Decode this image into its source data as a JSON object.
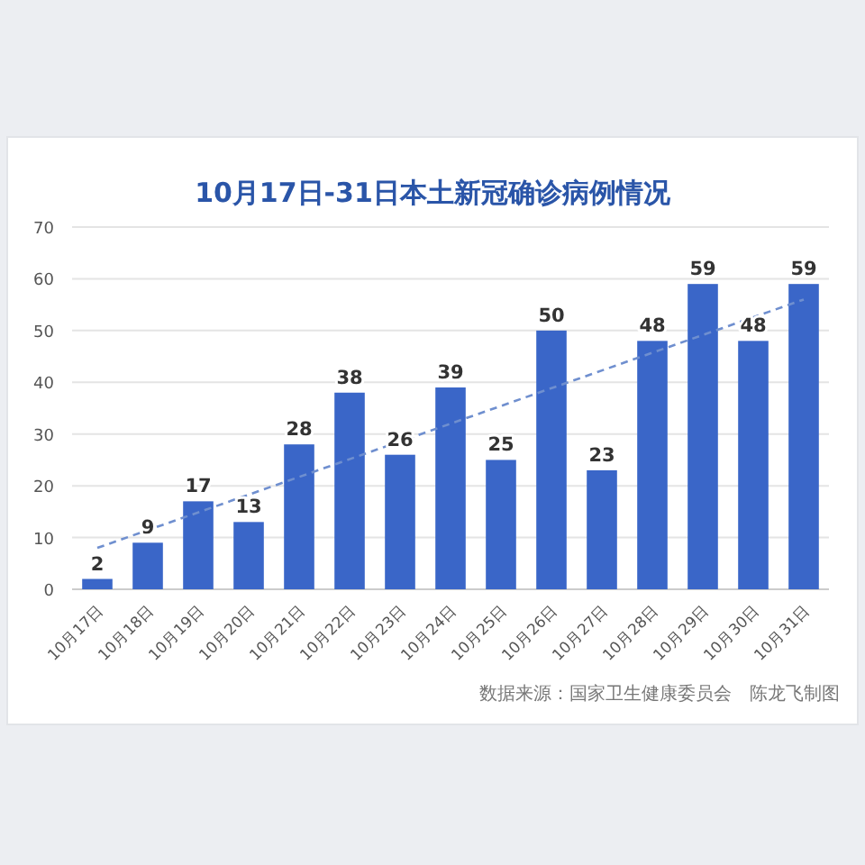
{
  "chart_data": {
    "type": "bar",
    "title": "10月17日-31日本土新冠确诊病例情况",
    "categories": [
      "10月17日",
      "10月18日",
      "10月19日",
      "10月20日",
      "10月21日",
      "10月22日",
      "10月23日",
      "10月24日",
      "10月25日",
      "10月26日",
      "10月27日",
      "10月28日",
      "10月29日",
      "10月30日",
      "10月31日"
    ],
    "series": [
      {
        "color": "#3a66c8",
        "data_labels": true,
        "values": [
          2,
          9,
          17,
          13,
          28,
          38,
          26,
          39,
          25,
          50,
          23,
          48,
          59,
          48,
          59
        ]
      },
      {
        "type": "line",
        "color": "#6f8fcf",
        "line_style": "dashed",
        "x": [
          "10月17日",
          "10月31日"
        ],
        "values": [
          8,
          56
        ]
      }
    ],
    "ylim": [
      0,
      70
    ],
    "yticks": [
      0,
      10,
      20,
      30,
      40,
      50,
      60,
      70
    ],
    "grid": "y",
    "annotations": [
      "数据来源：国家卫生健康委员会　陈龙飞制图"
    ]
  }
}
